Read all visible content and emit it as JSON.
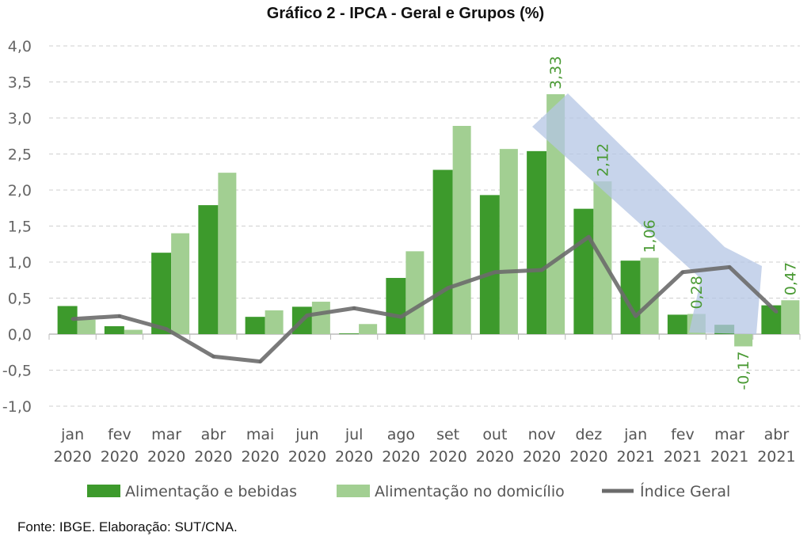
{
  "chart_data": {
    "type": "bar",
    "title": "Gráfico 2 - IPCA - Geral e Grupos (%)",
    "categories": [
      [
        "jan",
        "2020"
      ],
      [
        "fev",
        "2020"
      ],
      [
        "mar",
        "2020"
      ],
      [
        "abr",
        "2020"
      ],
      [
        "mai",
        "2020"
      ],
      [
        "jun",
        "2020"
      ],
      [
        "jul",
        "2020"
      ],
      [
        "ago",
        "2020"
      ],
      [
        "set",
        "2020"
      ],
      [
        "out",
        "2020"
      ],
      [
        "nov",
        "2020"
      ],
      [
        "dez",
        "2020"
      ],
      [
        "jan",
        "2021"
      ],
      [
        "fev",
        "2021"
      ],
      [
        "mar",
        "2021"
      ],
      [
        "abr",
        "2021"
      ]
    ],
    "ylim": [
      -1.0,
      4.0
    ],
    "yticks": [
      "-1,0",
      "-0,5",
      "0,0",
      "0,5",
      "1,0",
      "1,5",
      "2,0",
      "2,5",
      "3,0",
      "3,5",
      "4,0"
    ],
    "grid": true,
    "legend_position": "bottom",
    "series": [
      {
        "name": "Alimentação e bebidas",
        "type": "bar",
        "color": "#3d9a2c",
        "values": [
          0.39,
          0.11,
          1.13,
          1.79,
          0.24,
          0.38,
          0.01,
          0.78,
          2.28,
          1.93,
          2.54,
          1.74,
          1.02,
          0.27,
          0.13,
          0.4
        ]
      },
      {
        "name": "Alimentação no domicílio",
        "type": "bar",
        "color": "#a2cf92",
        "values": [
          0.2,
          0.06,
          1.4,
          2.24,
          0.33,
          0.45,
          0.14,
          1.15,
          2.89,
          2.57,
          3.33,
          2.12,
          1.06,
          0.28,
          -0.17,
          0.47
        ],
        "data_labels": {
          "10": "3,33",
          "11": "2,12",
          "12": "1,06",
          "13": "0,28",
          "14": "-0,17",
          "15": "0,47"
        }
      },
      {
        "name": "Índice Geral",
        "type": "line",
        "color": "#6b6b6b",
        "values": [
          0.21,
          0.25,
          0.07,
          -0.31,
          -0.38,
          0.26,
          0.36,
          0.24,
          0.64,
          0.86,
          0.89,
          1.35,
          0.25,
          0.86,
          0.93,
          0.31
        ]
      }
    ],
    "annotations": [
      {
        "type": "arrow",
        "direction": "down",
        "from": "nov 2020",
        "to": "abr 2021",
        "color": "#b4c5e4"
      }
    ],
    "data_label_color": "#4a9a34"
  },
  "source": "Fonte: IBGE. Elaboração: SUT/CNA."
}
